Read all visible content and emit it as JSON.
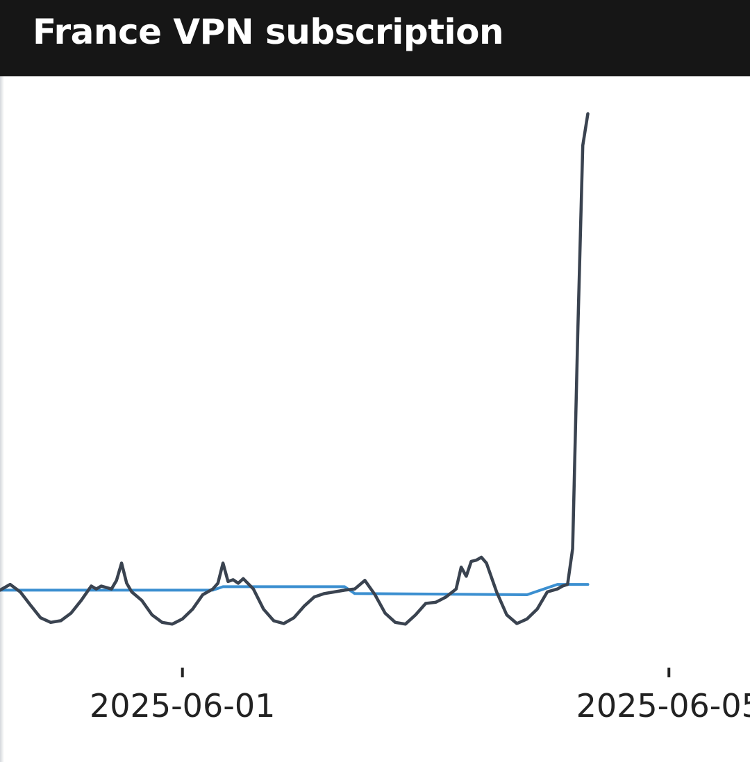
{
  "title": "France VPN subscription",
  "chart_data": {
    "type": "line",
    "title": "France VPN subscription",
    "xlabel": "",
    "ylabel": "",
    "x_ticks": [
      "2025-06-01",
      "2025-06-05"
    ],
    "x_range": [
      "2025-05-30T12:00",
      "2025-06-05T16:00"
    ],
    "y_range": [
      0,
      100
    ],
    "grid": false,
    "legend": "none",
    "colors": {
      "observed": "#3a4350",
      "baseline": "#3b8fd0"
    },
    "series": [
      {
        "style": "observed",
        "points": [
          [
            "2025-05-30T12:00",
            10.8
          ],
          [
            "2025-05-30T14:00",
            11.8
          ],
          [
            "2025-05-30T16:00",
            10.5
          ],
          [
            "2025-05-30T18:00",
            8.2
          ],
          [
            "2025-05-30T20:00",
            6.0
          ],
          [
            "2025-05-30T22:00",
            5.2
          ],
          [
            "2025-05-31T00:00",
            5.5
          ],
          [
            "2025-05-31T02:00",
            6.8
          ],
          [
            "2025-05-31T04:00",
            9.0
          ],
          [
            "2025-05-31T06:00",
            11.5
          ],
          [
            "2025-05-31T07:00",
            11.0
          ],
          [
            "2025-05-31T08:00",
            11.5
          ],
          [
            "2025-05-31T10:00",
            11.0
          ],
          [
            "2025-05-31T11:00",
            12.5
          ],
          [
            "2025-05-31T12:00",
            15.5
          ],
          [
            "2025-05-31T13:00",
            12.0
          ],
          [
            "2025-05-31T14:00",
            10.5
          ],
          [
            "2025-05-31T16:00",
            9.0
          ],
          [
            "2025-05-31T18:00",
            6.5
          ],
          [
            "2025-05-31T20:00",
            5.2
          ],
          [
            "2025-05-31T22:00",
            4.9
          ],
          [
            "2025-06-01T00:00",
            5.8
          ],
          [
            "2025-06-01T02:00",
            7.5
          ],
          [
            "2025-06-01T04:00",
            10.0
          ],
          [
            "2025-06-01T06:00",
            11.0
          ],
          [
            "2025-06-01T07:00",
            12.0
          ],
          [
            "2025-06-01T08:00",
            15.5
          ],
          [
            "2025-06-01T09:00",
            12.3
          ],
          [
            "2025-06-01T10:00",
            12.6
          ],
          [
            "2025-06-01T11:00",
            12.0
          ],
          [
            "2025-06-01T12:00",
            12.8
          ],
          [
            "2025-06-01T14:00",
            11.0
          ],
          [
            "2025-06-01T16:00",
            7.5
          ],
          [
            "2025-06-01T18:00",
            5.5
          ],
          [
            "2025-06-01T20:00",
            5.0
          ],
          [
            "2025-06-01T22:00",
            6.0
          ],
          [
            "2025-06-02T00:00",
            8.0
          ],
          [
            "2025-06-02T02:00",
            9.6
          ],
          [
            "2025-06-02T04:00",
            10.2
          ],
          [
            "2025-06-02T06:00",
            10.5
          ],
          [
            "2025-06-02T08:00",
            10.8
          ],
          [
            "2025-06-02T10:00",
            11.0
          ],
          [
            "2025-06-02T12:00",
            12.5
          ],
          [
            "2025-06-02T14:00",
            10.0
          ],
          [
            "2025-06-02T16:00",
            6.8
          ],
          [
            "2025-06-02T18:00",
            5.2
          ],
          [
            "2025-06-02T20:00",
            4.9
          ],
          [
            "2025-06-02T22:00",
            6.5
          ],
          [
            "2025-06-03T00:00",
            8.5
          ],
          [
            "2025-06-03T02:00",
            8.7
          ],
          [
            "2025-06-03T04:00",
            9.6
          ],
          [
            "2025-06-03T06:00",
            11.0
          ],
          [
            "2025-06-03T07:00",
            14.8
          ],
          [
            "2025-06-03T08:00",
            13.2
          ],
          [
            "2025-06-03T09:00",
            15.8
          ],
          [
            "2025-06-03T10:00",
            16.0
          ],
          [
            "2025-06-03T11:00",
            16.5
          ],
          [
            "2025-06-03T12:00",
            15.5
          ],
          [
            "2025-06-03T14:00",
            10.5
          ],
          [
            "2025-06-03T16:00",
            6.5
          ],
          [
            "2025-06-03T18:00",
            5.0
          ],
          [
            "2025-06-03T20:00",
            5.8
          ],
          [
            "2025-06-03T22:00",
            7.5
          ],
          [
            "2025-06-04T00:00",
            10.5
          ],
          [
            "2025-06-04T02:00",
            11.0
          ],
          [
            "2025-06-04T03:00",
            11.5
          ],
          [
            "2025-06-04T04:00",
            11.8
          ],
          [
            "2025-06-04T05:00",
            18.0
          ],
          [
            "2025-06-04T06:00",
            55.0
          ],
          [
            "2025-06-04T07:00",
            88.0
          ],
          [
            "2025-06-04T08:00",
            93.5
          ]
        ]
      },
      {
        "style": "baseline",
        "points": [
          [
            "2025-05-30T12:00",
            10.8
          ],
          [
            "2025-06-01T06:00",
            10.8
          ],
          [
            "2025-06-01T08:00",
            11.4
          ],
          [
            "2025-06-02T08:00",
            11.4
          ],
          [
            "2025-06-02T10:00",
            10.2
          ],
          [
            "2025-06-03T20:00",
            10.0
          ],
          [
            "2025-06-03T22:00",
            10.6
          ],
          [
            "2025-06-04T02:00",
            11.8
          ],
          [
            "2025-06-04T08:00",
            11.8
          ]
        ]
      }
    ]
  }
}
